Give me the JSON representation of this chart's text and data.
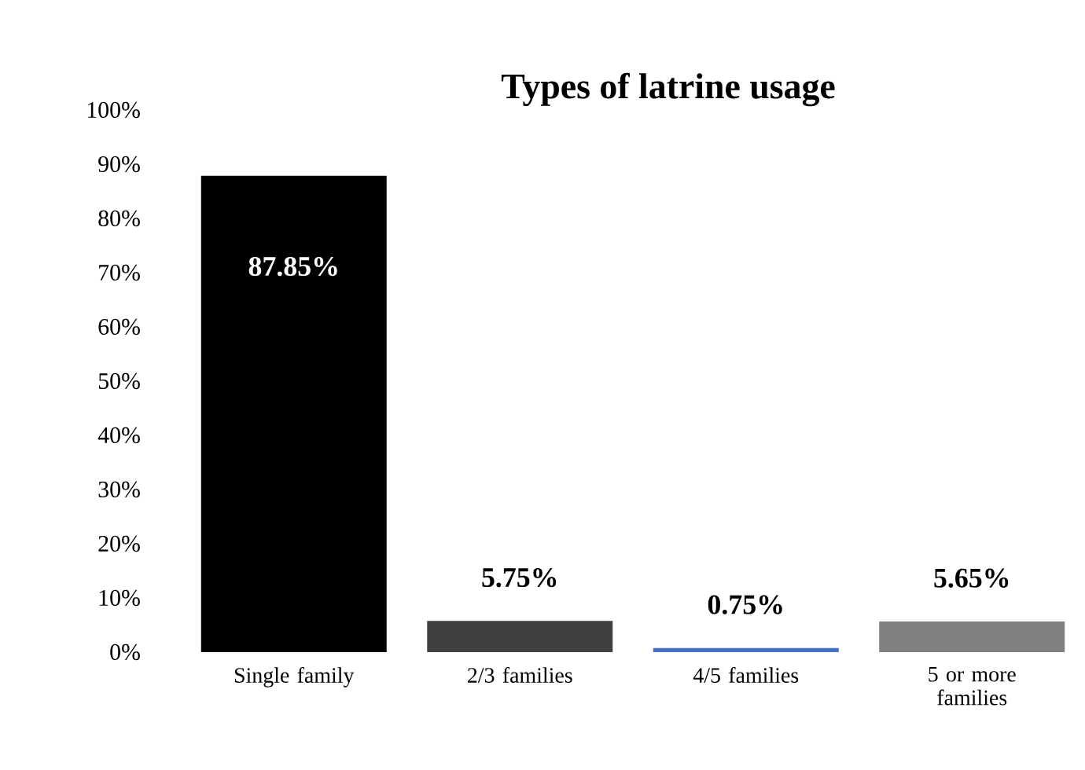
{
  "chart_data": {
    "type": "bar",
    "title": "Types of latrine usage",
    "categories": [
      "Single family",
      "2/3 families",
      "4/5 families",
      "5 or more families"
    ],
    "values": [
      87.85,
      5.75,
      0.75,
      5.65
    ],
    "colors": [
      "#000000",
      "#404040",
      "#4472c4",
      "#808080"
    ],
    "value_labels": [
      "87.85%",
      "5.75%",
      "0.75%",
      "5.65%"
    ],
    "ylim": [
      0,
      100
    ],
    "yticks": [
      {
        "value": 0,
        "label": "0%"
      },
      {
        "value": 10,
        "label": "10%"
      },
      {
        "value": 20,
        "label": "20%"
      },
      {
        "value": 30,
        "label": "30%"
      },
      {
        "value": 40,
        "label": "40%"
      },
      {
        "value": 50,
        "label": "50%"
      },
      {
        "value": 60,
        "label": "60%"
      },
      {
        "value": 70,
        "label": "70%"
      },
      {
        "value": 80,
        "label": "80%"
      },
      {
        "value": 90,
        "label": "90%"
      },
      {
        "value": 100,
        "label": "100%"
      }
    ],
    "grid": false
  }
}
